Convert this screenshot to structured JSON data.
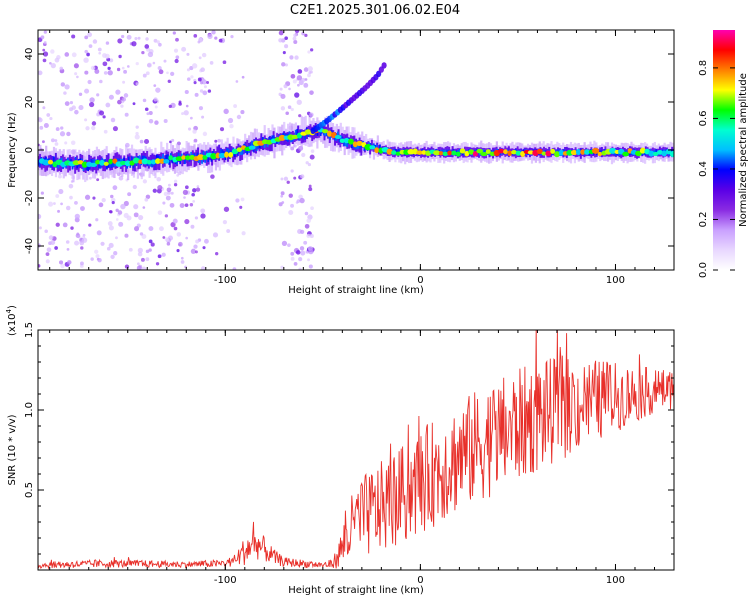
{
  "title": "C2E1.2025.301.06.02.E04",
  "chart_data": [
    {
      "type": "heatmap",
      "xlabel": "Height of straight line (km)",
      "ylabel": "Frequency (Hz)",
      "xlim": [
        -196,
        130
      ],
      "ylim": [
        -50,
        50
      ],
      "xticks": [
        -100,
        0,
        100
      ],
      "yticks": [
        -40,
        -20,
        0,
        20,
        40
      ],
      "colorbar": {
        "label": "Normalized spectral amplitude",
        "range": [
          0,
          0.95
        ],
        "ticks": [
          0.0,
          0.2,
          0.4,
          0.6,
          0.8
        ],
        "tick_labels": [
          "0.0",
          "0.2",
          "0.4",
          "0.6",
          "0.8"
        ],
        "colors": [
          "#ffffff",
          "#e8d7ff",
          "#c9a0ff",
          "#8a2be2",
          "#5a00e6",
          "#0000ff",
          "#00bfff",
          "#00ffd0",
          "#00ff00",
          "#ffff00",
          "#ff7f00",
          "#ff0000",
          "#ff00b0"
        ]
      },
      "ridge": {
        "x": [
          -196,
          -170,
          -150,
          -130,
          -110,
          -95,
          -85,
          -75,
          -65,
          -58,
          -50,
          -42,
          -35,
          -30,
          -20,
          -10,
          0,
          20,
          50,
          80,
          110,
          130
        ],
        "freq": [
          -5,
          -6,
          -5,
          -4,
          -3,
          -1,
          2,
          4,
          6,
          7,
          8,
          5,
          3,
          2,
          0,
          -1,
          -1,
          -1,
          -1,
          -1,
          -1,
          -1
        ]
      },
      "branch": {
        "x": [
          -55,
          -48,
          -42,
          -35,
          -28,
          -22,
          -18
        ],
        "freq": [
          8,
          12,
          16,
          21,
          26,
          31,
          36
        ]
      }
    },
    {
      "type": "line",
      "title": "",
      "xlabel": "Height of straight line (km)",
      "ylabel": "SNR (10 * v/v)",
      "exponent_label": "(x10",
      "exponent_power": "4",
      "exponent_close": ")",
      "xlim": [
        -196,
        130
      ],
      "ylim": [
        0,
        15000
      ],
      "xticks": [
        -100,
        0,
        100
      ],
      "yticks": [
        5000,
        10000,
        15000
      ],
      "ytick_labels": [
        "0.5",
        "1.0",
        "1.5"
      ],
      "color": "#e8302a",
      "envelope": {
        "x": [
          -196,
          -160,
          -120,
          -100,
          -95,
          -90,
          -85,
          -80,
          -75,
          -70,
          -60,
          -50,
          -45,
          -42,
          -40,
          -38,
          -35,
          -30,
          -25,
          -20,
          -15,
          -10,
          -5,
          0,
          10,
          20,
          30,
          40,
          50,
          60,
          70,
          80,
          90,
          100,
          110,
          120,
          130
        ],
        "mean": [
          300,
          400,
          350,
          400,
          600,
          1200,
          1700,
          1300,
          800,
          500,
          400,
          300,
          400,
          900,
          1500,
          2000,
          2600,
          3200,
          3600,
          3900,
          4200,
          4600,
          5000,
          5500,
          6300,
          7100,
          7800,
          8400,
          9000,
          9600,
          10000,
          10300,
          10600,
          10800,
          11000,
          11200,
          11300
        ],
        "spread": [
          200,
          250,
          200,
          250,
          400,
          900,
          1000,
          800,
          500,
          300,
          250,
          200,
          300,
          800,
          1300,
          1800,
          2200,
          2600,
          2800,
          2900,
          3000,
          3100,
          3200,
          3300,
          3400,
          3500,
          3600,
          3600,
          3600,
          3500,
          3300,
          3000,
          2600,
          2200,
          1800,
          1400,
          1200
        ]
      }
    }
  ]
}
